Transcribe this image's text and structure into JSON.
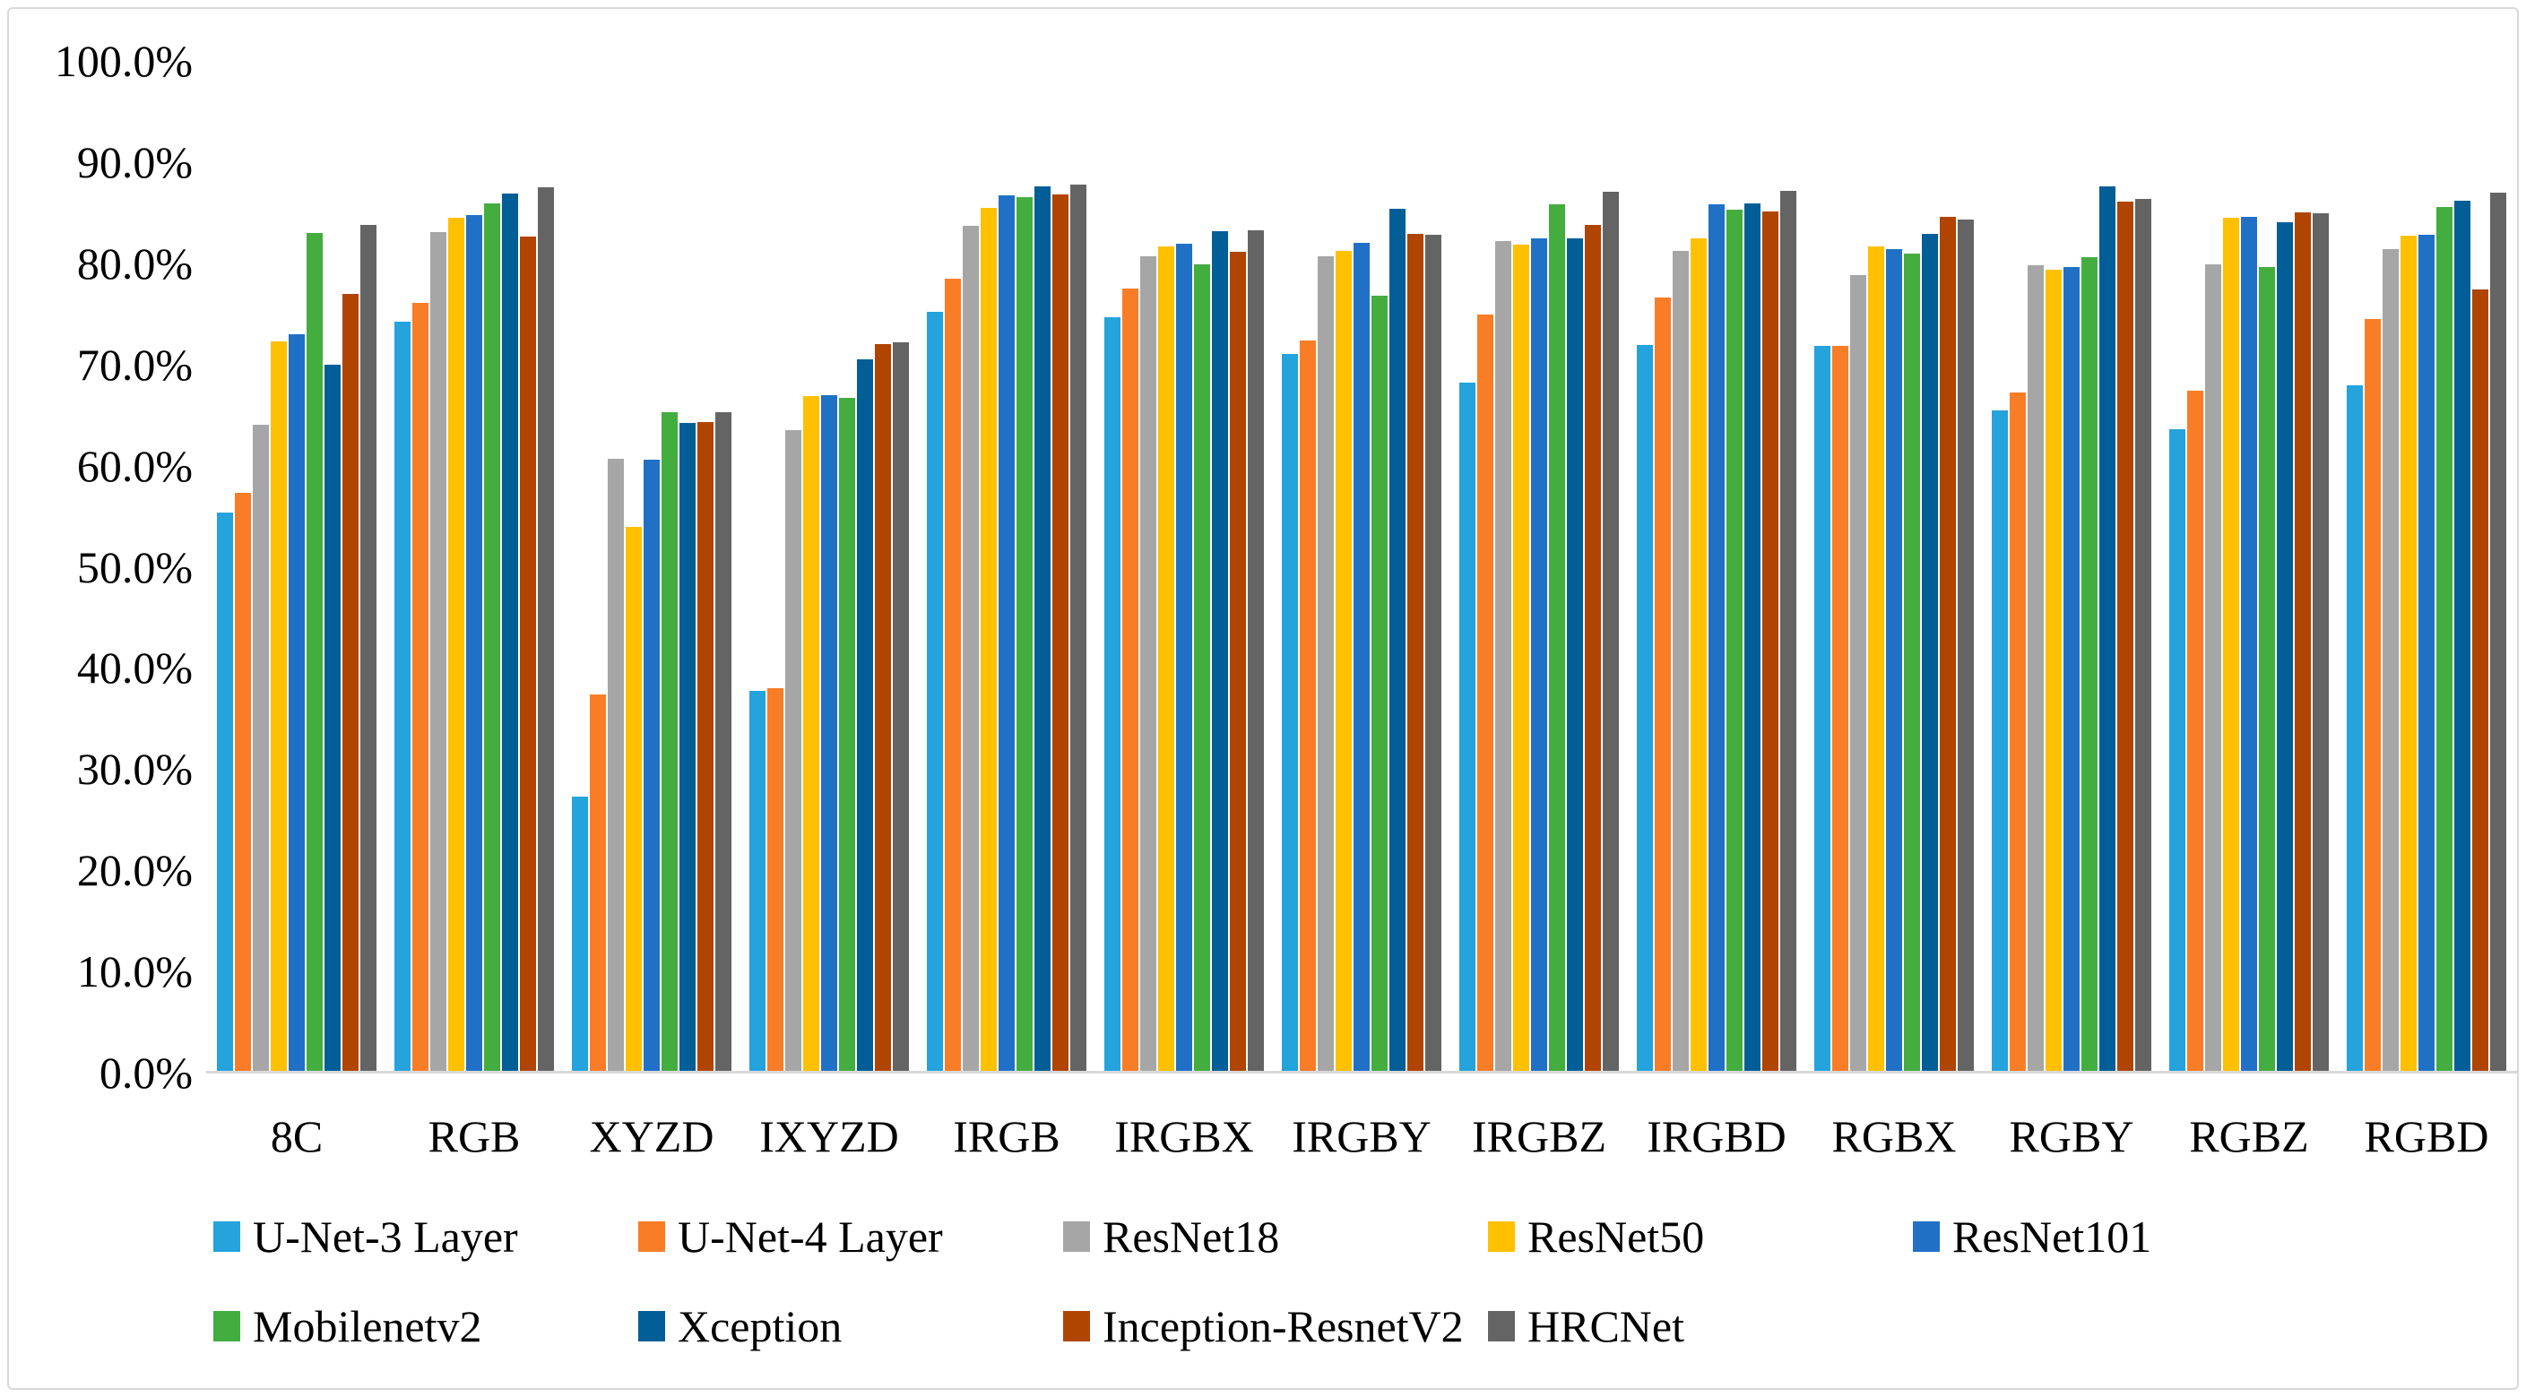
{
  "chart_data": {
    "type": "bar",
    "title": "",
    "xlabel": "",
    "ylabel": "",
    "categories": [
      "8C",
      "RGB",
      "XYZD",
      "IXYZD",
      "IRGB",
      "IRGBX",
      "IRGBY",
      "IRGBZ",
      "IRGBD",
      "RGBX",
      "RGBY",
      "RGBZ",
      "RGBD"
    ],
    "series": [
      {
        "name": "U-Net-3 Layer",
        "color": "#24A3DC",
        "values": [
          55.4,
          74.2,
          27.3,
          37.7,
          75.2,
          74.7,
          71.0,
          68.2,
          71.9,
          71.8,
          65.5,
          63.6,
          67.9
        ]
      },
      {
        "name": "U-Net-4 Layer",
        "color": "#F97D27",
        "values": [
          57.3,
          76.1,
          37.4,
          38.0,
          78.5,
          77.5,
          72.4,
          74.9,
          76.6,
          71.8,
          67.2,
          67.4,
          74.5
        ]
      },
      {
        "name": "ResNet18",
        "color": "#A6A6A6",
        "values": [
          64.0,
          83.1,
          60.7,
          63.5,
          83.7,
          80.7,
          80.7,
          82.2,
          81.2,
          78.8,
          79.8,
          79.9,
          81.4
        ]
      },
      {
        "name": "ResNet50",
        "color": "#FFC000",
        "values": [
          72.3,
          84.5,
          53.9,
          66.9,
          85.5,
          81.7,
          81.2,
          81.8,
          82.5,
          81.7,
          79.4,
          84.5,
          82.7
        ]
      },
      {
        "name": "ResNet101",
        "color": "#2071C5",
        "values": [
          73.0,
          84.8,
          60.6,
          67.0,
          86.7,
          81.9,
          82.0,
          82.5,
          85.8,
          81.4,
          79.6,
          84.6,
          82.8
        ]
      },
      {
        "name": "Mobilenetv2",
        "color": "#44AD3F",
        "values": [
          83.0,
          85.9,
          65.3,
          66.7,
          86.5,
          79.9,
          76.8,
          85.8,
          85.3,
          81.0,
          80.6,
          79.6,
          85.6
        ]
      },
      {
        "name": "Xception",
        "color": "#015E96",
        "values": [
          70.0,
          86.9,
          64.2,
          70.5,
          87.6,
          83.2,
          85.4,
          82.5,
          85.9,
          82.9,
          87.6,
          84.1,
          86.2
        ]
      },
      {
        "name": "Inception-ResnetV2",
        "color": "#B04502",
        "values": [
          77.0,
          82.6,
          64.3,
          72.0,
          86.8,
          81.1,
          82.9,
          83.8,
          85.1,
          84.6,
          86.1,
          85.0,
          77.4
        ]
      },
      {
        "name": "HRCNet",
        "color": "#646464",
        "values": [
          83.8,
          87.5,
          65.3,
          72.2,
          87.8,
          83.3,
          82.8,
          87.1,
          87.2,
          84.3,
          86.4,
          84.9,
          87.0
        ]
      }
    ],
    "y_axis": {
      "min": 0,
      "max": 100,
      "step": 10,
      "unit": "%",
      "tick_labels": [
        "0.0%",
        "10.0%",
        "20.0%",
        "30.0%",
        "40.0%",
        "50.0%",
        "60.0%",
        "70.0%",
        "80.0%",
        "90.0%",
        "100.0%"
      ]
    },
    "legend_position": "bottom",
    "grid": false,
    "colors": {
      "background": "#FFFFFF",
      "axis_line": "#D9D9D9",
      "frame_border": "#D8D8D8",
      "text": "#000000"
    }
  }
}
